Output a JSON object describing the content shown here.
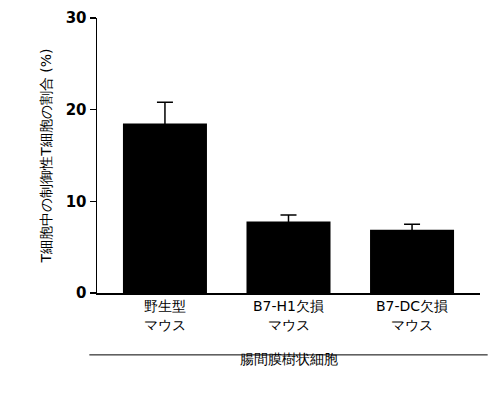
{
  "chart_data": {
    "type": "bar",
    "categories": [
      "野生型\nマウス",
      "B7-H1欠損\nマウス",
      "B7-DC欠損\nマウス"
    ],
    "values": [
      18.5,
      7.8,
      6.9
    ],
    "errors": [
      2.3,
      0.7,
      0.6
    ],
    "color": "#000000",
    "x_label": "腸間膜樹状細胞",
    "y_label": "T細胞中の制御性T細胞の割合 (%)",
    "ylim": [
      0,
      30
    ],
    "yticks": [
      0,
      10,
      20,
      30
    ],
    "grid": false
  }
}
